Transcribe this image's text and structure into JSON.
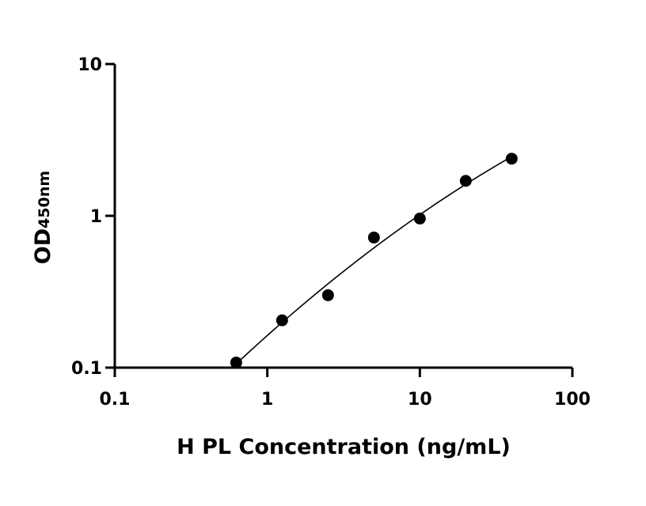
{
  "chart_data": {
    "type": "scatter",
    "title": "",
    "xlabel": "H PL Concentration (ng/mL)",
    "ylabel_main": "OD",
    "ylabel_sub": "450nm",
    "x_scale": "log",
    "y_scale": "log",
    "xlim": [
      0.1,
      100
    ],
    "ylim": [
      0.1,
      10
    ],
    "x_ticks": [
      0.1,
      1,
      10,
      100
    ],
    "x_tick_labels": [
      "0.1",
      "1",
      "10",
      "100"
    ],
    "y_ticks": [
      0.1,
      1,
      10
    ],
    "y_tick_labels": [
      "0.1",
      "1",
      "10"
    ],
    "grid": false,
    "legend": "none",
    "series": [
      {
        "x": [
          0.625,
          1.25,
          2.5,
          5,
          10,
          20,
          40
        ],
        "y": [
          0.108,
          0.205,
          0.3,
          0.72,
          0.96,
          1.7,
          2.38
        ]
      }
    ],
    "fit_curve": {
      "type": "four-parameter logistic",
      "x_range": [
        0.625,
        40
      ]
    }
  }
}
